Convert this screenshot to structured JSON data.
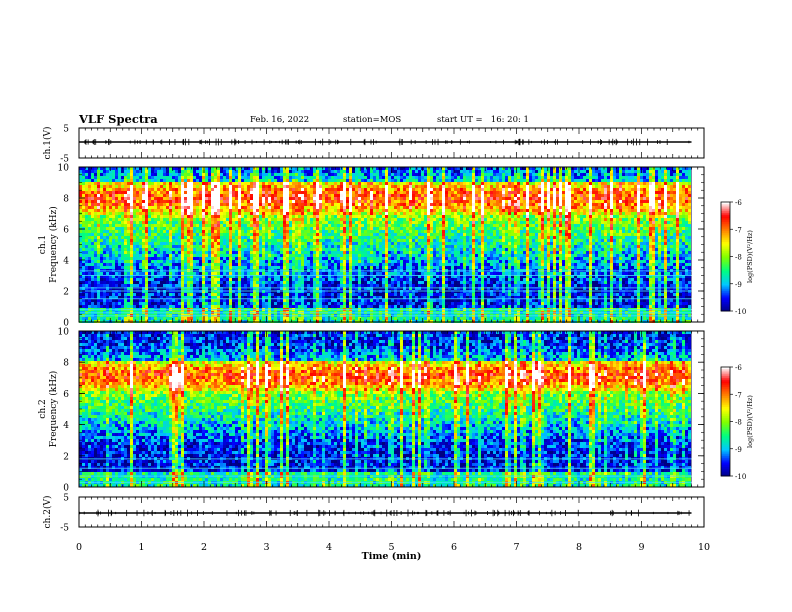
{
  "header": {
    "title": "VLF Spectra",
    "date": "Feb. 16, 2022",
    "station": "station=MOS",
    "start": "start UT =   16: 20: 1"
  },
  "chart_data": [
    {
      "type": "line",
      "panel": "ch1-waveform",
      "ylabel": "ch.1(V)",
      "ylim": [
        -5,
        5
      ],
      "yticks": [
        "5",
        "-5"
      ],
      "x": [
        0,
        9.8
      ],
      "series": [
        {
          "values": [
            0,
            0
          ]
        }
      ]
    },
    {
      "type": "heatmap",
      "panel": "ch1-spectrogram",
      "ylabel": "ch.1\nFrequency (kHz)",
      "ylim": [
        0,
        10
      ],
      "yticks": [
        "0",
        "2",
        "4",
        "6",
        "8",
        "10"
      ],
      "xlim": [
        0,
        10
      ],
      "data_end_min": 9.8,
      "emission_band_khz": [
        7,
        9.2
      ],
      "interference_lines_khz": [
        0.4,
        0.6,
        0.8,
        1.5,
        2.0,
        2.2,
        3.0,
        3.3
      ],
      "colorbar": {
        "label": "log(PSD)(V²/Hz)",
        "range": [
          -10,
          -6
        ],
        "ticks": [
          "-6",
          "-7",
          "-8",
          "-9",
          "-10"
        ],
        "colors": [
          "#000080",
          "#0000ff",
          "#00c8ff",
          "#00ff80",
          "#80ff00",
          "#ffff00",
          "#ff8000",
          "#ff0000",
          "#ffffff"
        ]
      }
    },
    {
      "type": "heatmap",
      "panel": "ch2-spectrogram",
      "ylabel": "ch.2\nFrequency (kHz)",
      "ylim": [
        0,
        10
      ],
      "yticks": [
        "0",
        "2",
        "4",
        "6",
        "8",
        "10"
      ],
      "xlim": [
        0,
        10
      ],
      "data_end_min": 9.8,
      "emission_band_khz": [
        6.2,
        8.2
      ],
      "interference_lines_khz": [
        0.3,
        0.7,
        1.2,
        1.8
      ],
      "colorbar": {
        "label": "log(PSD)(V²/Hz)",
        "range": [
          -10,
          -6
        ],
        "ticks": [
          "-6",
          "-7",
          "-8",
          "-9",
          "-10"
        ],
        "colors": [
          "#000080",
          "#0000ff",
          "#00c8ff",
          "#00ff80",
          "#80ff00",
          "#ffff00",
          "#ff8000",
          "#ff0000",
          "#ffffff"
        ]
      }
    },
    {
      "type": "line",
      "panel": "ch2-waveform",
      "ylabel": "ch.2(V)",
      "ylim": [
        -5,
        5
      ],
      "yticks": [
        "5",
        "-5"
      ],
      "x": [
        0,
        9.8
      ],
      "series": [
        {
          "values": [
            0,
            0
          ]
        }
      ]
    }
  ],
  "xaxis": {
    "label": "Time (min)",
    "range": [
      0,
      10
    ],
    "ticks": [
      "0",
      "1",
      "2",
      "3",
      "4",
      "5",
      "6",
      "7",
      "8",
      "9",
      "10"
    ]
  }
}
